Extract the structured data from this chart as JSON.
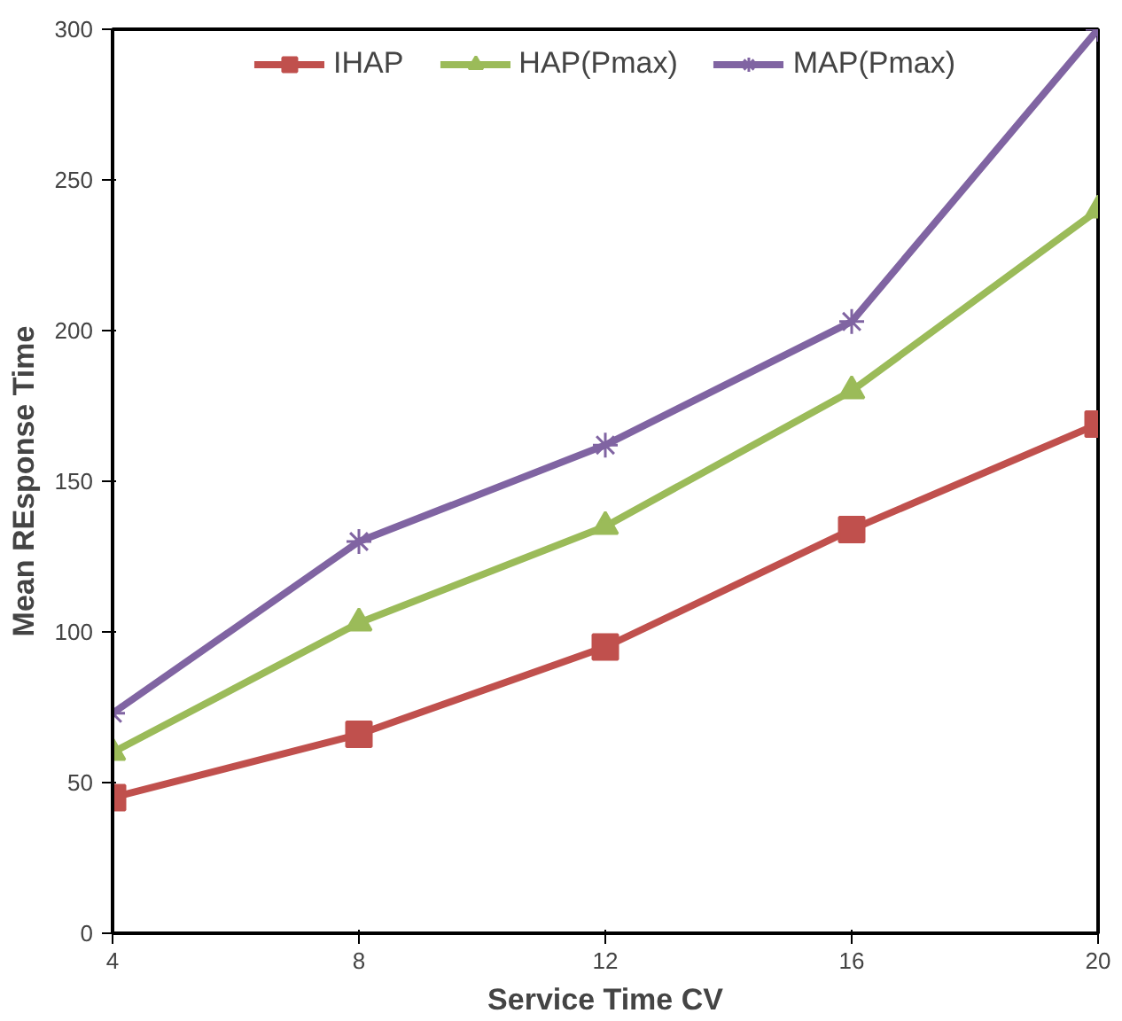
{
  "chart_data": {
    "type": "line",
    "xlabel": "Service Time CV",
    "ylabel": "Mean REsponse Time",
    "x": [
      4,
      8,
      12,
      16,
      20
    ],
    "xlim": [
      4,
      20
    ],
    "xticks": [
      4,
      8,
      12,
      16,
      20
    ],
    "ylim": [
      0,
      300
    ],
    "yticks": [
      0,
      50,
      100,
      150,
      200,
      250,
      300
    ],
    "grid": false,
    "legend": "top",
    "line_style": "solid",
    "series": [
      {
        "name": "IHAP",
        "color": "#c0504d",
        "marker": "square",
        "values": [
          45,
          66,
          95,
          134,
          169
        ]
      },
      {
        "name": "HAP(Pmax)",
        "color": "#9bbb59",
        "marker": "triangle",
        "values": [
          60,
          103,
          135,
          180,
          240
        ]
      },
      {
        "name": "MAP(Pmax)",
        "color": "#8064a2",
        "marker": "cross",
        "values": [
          73,
          130,
          162,
          203,
          300
        ]
      }
    ]
  }
}
